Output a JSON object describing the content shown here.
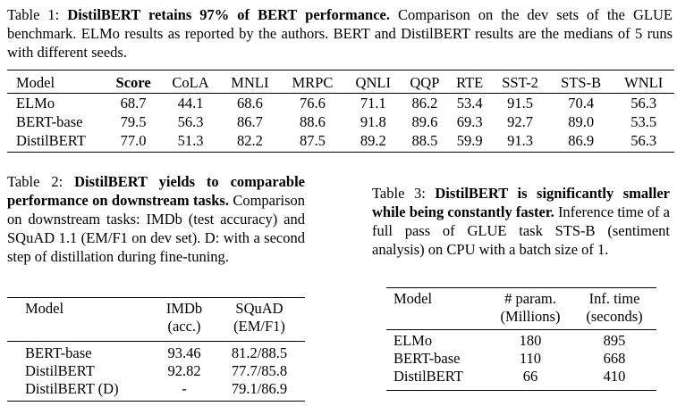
{
  "table1": {
    "caption_label": "Table 1:",
    "caption_bold": "DistilBERT retains 97% of BERT performance.",
    "caption_rest": "Comparison on the dev sets of the GLUE benchmark. ELMo results as reported by the authors. BERT and DistilBERT results are the medians of 5 runs with different seeds.",
    "headers": [
      "Model",
      "Score",
      "CoLA",
      "MNLI",
      "MRPC",
      "QNLI",
      "QQP",
      "RTE",
      "SST-2",
      "STS-B",
      "WNLI"
    ],
    "rows": [
      [
        "ELMo",
        "68.7",
        "44.1",
        "68.6",
        "76.6",
        "71.1",
        "86.2",
        "53.4",
        "91.5",
        "70.4",
        "56.3"
      ],
      [
        "BERT-base",
        "79.5",
        "56.3",
        "86.7",
        "88.6",
        "91.8",
        "89.6",
        "69.3",
        "92.7",
        "89.0",
        "53.5"
      ],
      [
        "DistilBERT",
        "77.0",
        "51.3",
        "82.2",
        "87.5",
        "89.2",
        "88.5",
        "59.9",
        "91.3",
        "86.9",
        "56.3"
      ]
    ]
  },
  "table2": {
    "caption_label": "Table 2:",
    "caption_bold": "DistilBERT yields to comparable performance on downstream tasks.",
    "caption_rest": "Comparison on downstream tasks: IMDb (test accuracy) and SQuAD 1.1 (EM/F1 on dev set). D: with a second step of distillation during fine-tuning.",
    "headers": {
      "model": "Model",
      "imdb_line1": "IMDb",
      "imdb_line2": "(acc.)",
      "squad_line1": "SQuAD",
      "squad_line2": "(EM/F1)"
    },
    "rows": [
      [
        "BERT-base",
        "93.46",
        "81.2/88.5"
      ],
      [
        "DistilBERT",
        "92.82",
        "77.7/85.8"
      ],
      [
        "DistilBERT (D)",
        "-",
        "79.1/86.9"
      ]
    ]
  },
  "table3": {
    "caption_label": "Table 3:",
    "caption_bold": "DistilBERT is significantly smaller while being constantly faster.",
    "caption_rest": "Inference time of a full pass of GLUE task STS-B (sentiment analysis) on CPU with a batch size of 1.",
    "headers": {
      "model": "Model",
      "param_line1": "# param.",
      "param_line2": "(Millions)",
      "time_line1": "Inf. time",
      "time_line2": "(seconds)"
    },
    "rows": [
      [
        "ELMo",
        "180",
        "895"
      ],
      [
        "BERT-base",
        "110",
        "668"
      ],
      [
        "DistilBERT",
        "66",
        "410"
      ]
    ]
  }
}
